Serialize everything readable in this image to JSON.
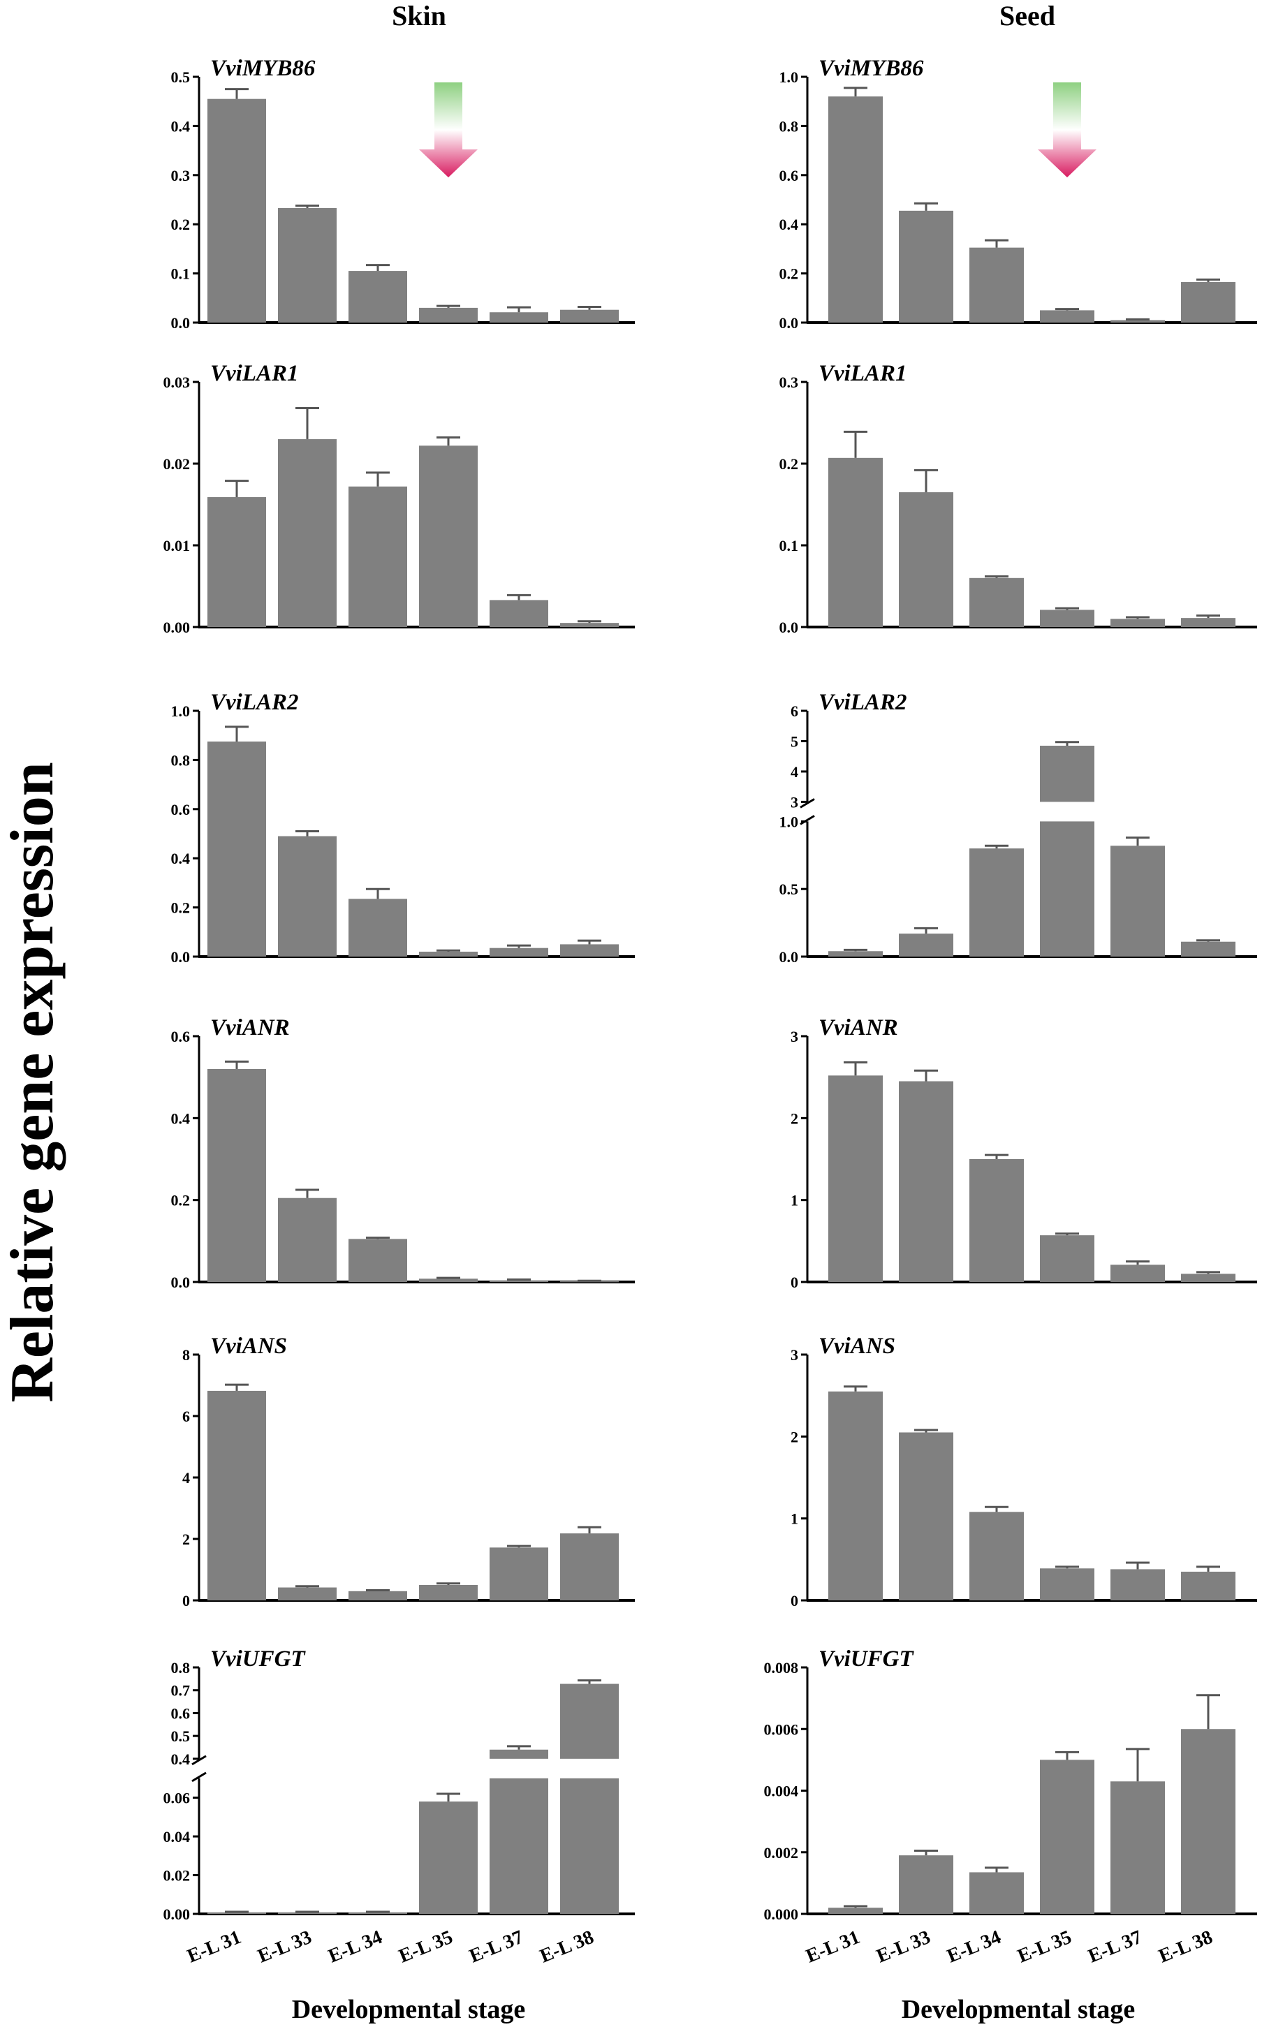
{
  "figure": {
    "columns": [
      "Skin",
      "Seed"
    ],
    "ylabel": "Relative gene expression",
    "xlabel": "Developmental stage",
    "bar_color": "#808080",
    "arrow_colors": [
      "#8ed081",
      "#ffffff",
      "#d81b60"
    ]
  },
  "chart_data": [
    {
      "type": "bar",
      "title": "VviMYB86",
      "column": "Skin",
      "categories": [
        "E-L 31",
        "E-L 33",
        "E-L 34",
        "E-L 35",
        "E-L 37",
        "E-L 38"
      ],
      "values": [
        0.455,
        0.233,
        0.105,
        0.03,
        0.021,
        0.026
      ],
      "errors": [
        0.02,
        0.005,
        0.012,
        0.004,
        0.01,
        0.006
      ],
      "ylim": [
        0,
        0.5
      ],
      "yticks": [
        0,
        0.1,
        0.2,
        0.3,
        0.4,
        0.5
      ],
      "ytick_labels": [
        "0.0",
        "0.1",
        "0.2",
        "0.3",
        "0.4",
        "0.5"
      ],
      "arrow": true
    },
    {
      "type": "bar",
      "title": "VviMYB86",
      "column": "Seed",
      "categories": [
        "E-L 31",
        "E-L 33",
        "E-L 34",
        "E-L 35",
        "E-L 37",
        "E-L 38"
      ],
      "values": [
        0.92,
        0.455,
        0.305,
        0.05,
        0.01,
        0.165
      ],
      "errors": [
        0.035,
        0.03,
        0.03,
        0.005,
        0.003,
        0.01
      ],
      "ylim": [
        0,
        1.0
      ],
      "yticks": [
        0,
        0.2,
        0.4,
        0.6,
        0.8,
        1.0
      ],
      "ytick_labels": [
        "0.0",
        "0.2",
        "0.4",
        "0.6",
        "0.8",
        "1.0"
      ],
      "arrow": true
    },
    {
      "type": "bar",
      "title": "VviLAR1",
      "column": "Skin",
      "categories": [
        "E-L 31",
        "E-L 33",
        "E-L 34",
        "E-L 35",
        "E-L 37",
        "E-L 38"
      ],
      "values": [
        0.0159,
        0.023,
        0.0172,
        0.0222,
        0.0033,
        0.0005
      ],
      "errors": [
        0.002,
        0.0038,
        0.0017,
        0.001,
        0.0006,
        0.0002
      ],
      "ylim": [
        0,
        0.03
      ],
      "yticks": [
        0,
        0.01,
        0.02,
        0.03
      ],
      "ytick_labels": [
        "0.00",
        "0.01",
        "0.02",
        "0.03"
      ]
    },
    {
      "type": "bar",
      "title": "VviLAR1",
      "column": "Seed",
      "categories": [
        "E-L 31",
        "E-L 33",
        "E-L 34",
        "E-L 35",
        "E-L 37",
        "E-L 38"
      ],
      "values": [
        0.207,
        0.165,
        0.06,
        0.021,
        0.01,
        0.011
      ],
      "errors": [
        0.032,
        0.027,
        0.002,
        0.002,
        0.002,
        0.003
      ],
      "ylim": [
        0,
        0.3
      ],
      "yticks": [
        0,
        0.1,
        0.2,
        0.3
      ],
      "ytick_labels": [
        "0.0",
        "0.1",
        "0.2",
        "0.3"
      ]
    },
    {
      "type": "bar",
      "title": "VviLAR2",
      "column": "Skin",
      "categories": [
        "E-L 31",
        "E-L 33",
        "E-L 34",
        "E-L 35",
        "E-L 37",
        "E-L 38"
      ],
      "values": [
        0.875,
        0.49,
        0.235,
        0.02,
        0.035,
        0.05
      ],
      "errors": [
        0.06,
        0.02,
        0.04,
        0.005,
        0.01,
        0.015
      ],
      "ylim": [
        0,
        1.0
      ],
      "yticks": [
        0,
        0.2,
        0.4,
        0.6,
        0.8,
        1.0
      ],
      "ytick_labels": [
        "0.0",
        "0.2",
        "0.4",
        "0.6",
        "0.8",
        "1.0"
      ]
    },
    {
      "type": "bar",
      "title": "VviLAR2",
      "column": "Seed",
      "categories": [
        "E-L 31",
        "E-L 33",
        "E-L 34",
        "E-L 35",
        "E-L 37",
        "E-L 38"
      ],
      "values": [
        0.04,
        0.17,
        0.8,
        4.85,
        0.82,
        0.11
      ],
      "errors": [
        0.01,
        0.04,
        0.02,
        0.12,
        0.06,
        0.01
      ],
      "axis_break": {
        "lower": [
          0,
          1.0
        ],
        "upper": [
          3,
          6
        ]
      },
      "yticks": [
        0,
        0.5,
        1.0,
        3,
        4,
        5,
        6
      ],
      "ytick_labels": [
        "0.0",
        "0.5",
        "1.0",
        "3",
        "4",
        "5",
        "6"
      ]
    },
    {
      "type": "bar",
      "title": "VviANR",
      "column": "Skin",
      "categories": [
        "E-L 31",
        "E-L 33",
        "E-L 34",
        "E-L 35",
        "E-L 37",
        "E-L 38"
      ],
      "values": [
        0.52,
        0.205,
        0.105,
        0.008,
        0.004,
        0.002
      ],
      "errors": [
        0.018,
        0.02,
        0.003,
        0.002,
        0.002,
        0.001
      ],
      "ylim": [
        0,
        0.6
      ],
      "yticks": [
        0,
        0.2,
        0.4,
        0.6
      ],
      "ytick_labels": [
        "0.0",
        "0.2",
        "0.4",
        "0.6"
      ]
    },
    {
      "type": "bar",
      "title": "VviANR",
      "column": "Seed",
      "categories": [
        "E-L 31",
        "E-L 33",
        "E-L 34",
        "E-L 35",
        "E-L 37",
        "E-L 38"
      ],
      "values": [
        2.52,
        2.45,
        1.5,
        0.57,
        0.21,
        0.1
      ],
      "errors": [
        0.16,
        0.13,
        0.05,
        0.02,
        0.04,
        0.02
      ],
      "ylim": [
        0,
        3
      ],
      "yticks": [
        0,
        1,
        2,
        3
      ],
      "ytick_labels": [
        "0",
        "1",
        "2",
        "3"
      ]
    },
    {
      "type": "bar",
      "title": "VviANS",
      "column": "Skin",
      "categories": [
        "E-L 31",
        "E-L 33",
        "E-L 34",
        "E-L 35",
        "E-L 37",
        "E-L 38"
      ],
      "values": [
        6.82,
        0.42,
        0.3,
        0.5,
        1.72,
        2.18
      ],
      "errors": [
        0.2,
        0.04,
        0.03,
        0.05,
        0.05,
        0.2
      ],
      "ylim": [
        0,
        8
      ],
      "yticks": [
        0,
        2,
        4,
        6,
        8
      ],
      "ytick_labels": [
        "0",
        "2",
        "4",
        "6",
        "8"
      ]
    },
    {
      "type": "bar",
      "title": "VviANS",
      "column": "Seed",
      "categories": [
        "E-L 31",
        "E-L 33",
        "E-L 34",
        "E-L 35",
        "E-L 37",
        "E-L 38"
      ],
      "values": [
        2.55,
        2.05,
        1.08,
        0.39,
        0.38,
        0.35
      ],
      "errors": [
        0.06,
        0.03,
        0.06,
        0.02,
        0.08,
        0.06
      ],
      "ylim": [
        0,
        3
      ],
      "yticks": [
        0,
        1,
        2,
        3
      ],
      "ytick_labels": [
        "0",
        "1",
        "2",
        "3"
      ]
    },
    {
      "type": "bar",
      "title": "VviUFGT",
      "column": "Skin",
      "categories": [
        "E-L 31",
        "E-L 33",
        "E-L 34",
        "E-L 35",
        "E-L 37",
        "E-L 38"
      ],
      "values": [
        0.0008,
        0.0008,
        0.0008,
        0.058,
        0.44,
        0.728
      ],
      "errors": [
        0.0003,
        0.0003,
        0.0003,
        0.004,
        0.015,
        0.015
      ],
      "axis_break": {
        "lower": [
          0,
          0.07
        ],
        "upper": [
          0.4,
          0.8
        ]
      },
      "yticks": [
        0,
        0.02,
        0.04,
        0.06,
        0.4,
        0.5,
        0.6,
        0.7,
        0.8
      ],
      "ytick_labels": [
        "0.00",
        "0.02",
        "0.04",
        "0.06",
        "0.4",
        "0.5",
        "0.6",
        "0.7",
        "0.8"
      ]
    },
    {
      "type": "bar",
      "title": "VviUFGT",
      "column": "Seed",
      "categories": [
        "E-L 31",
        "E-L 33",
        "E-L 34",
        "E-L 35",
        "E-L 37",
        "E-L 38"
      ],
      "values": [
        0.0002,
        0.0019,
        0.00135,
        0.005,
        0.0043,
        0.006
      ],
      "errors": [
        5e-05,
        0.00015,
        0.00015,
        0.00025,
        0.00105,
        0.0011
      ],
      "ylim": [
        0,
        0.008
      ],
      "yticks": [
        0,
        0.002,
        0.004,
        0.006,
        0.008
      ],
      "ytick_labels": [
        "0.000",
        "0.002",
        "0.004",
        "0.006",
        "0.008"
      ]
    }
  ]
}
